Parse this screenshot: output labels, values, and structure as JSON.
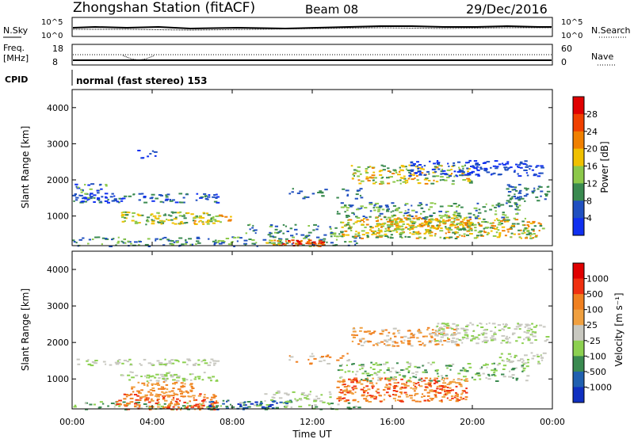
{
  "header": {
    "station": "Zhongshan Station (fitACF)",
    "beam": "Beam 08",
    "date": "29/Dec/2016"
  },
  "status_panels": {
    "nsky_label": "N.Sky",
    "nsky_ticks": [
      "10^5",
      "10^0"
    ],
    "nsearch_label": "N.Search",
    "nsearch_ticks": [
      "10^5",
      "10^0"
    ],
    "freq_label": "Freq.",
    "freq_unit": "[MHz]",
    "freq_ticks": [
      "18",
      "8"
    ],
    "nave_label": "Nave",
    "nave_ticks": [
      "60",
      "0"
    ],
    "cpid_label": "CPID",
    "cpid_text": "normal (fast stereo) 153"
  },
  "chart_data": [
    {
      "type": "heatmap",
      "name": "power",
      "ylabel": "Slant Range [km]",
      "ylim": [
        180,
        4500
      ],
      "yticks": [
        "4000",
        "3000",
        "2000",
        "1000"
      ],
      "xticks": [
        "00:00",
        "04:00",
        "08:00",
        "12:00",
        "16:00",
        "20:00",
        "00:00"
      ],
      "colorbar": {
        "label": "Power [dB]",
        "ticks": [
          "28",
          "24",
          "20",
          "16",
          "12",
          "8",
          "4"
        ],
        "colors": [
          "#1030f0",
          "#2050c0",
          "#3a8a50",
          "#8cc84a",
          "#f0c000",
          "#f08000",
          "#f04000",
          "#e00000"
        ]
      }
    },
    {
      "type": "heatmap",
      "name": "velocity",
      "ylabel": "Slant Range [km]",
      "ylim": [
        180,
        4500
      ],
      "yticks": [
        "4000",
        "3000",
        "2000",
        "1000"
      ],
      "xticks": [
        "00:00",
        "04:00",
        "08:00",
        "12:00",
        "16:00",
        "20:00",
        "00:00"
      ],
      "xlabel": "Time UT",
      "colorbar": {
        "label": "Velocity [m s⁻¹]",
        "ticks": [
          "1000",
          "500",
          "100",
          "25",
          "-25",
          "-100",
          "-500",
          "-1000"
        ],
        "colors": [
          "#1030c0",
          "#2060b0",
          "#3a8a50",
          "#8cd050",
          "#c8c8c0",
          "#f0a040",
          "#f08020",
          "#f03010",
          "#e00000"
        ]
      }
    }
  ]
}
